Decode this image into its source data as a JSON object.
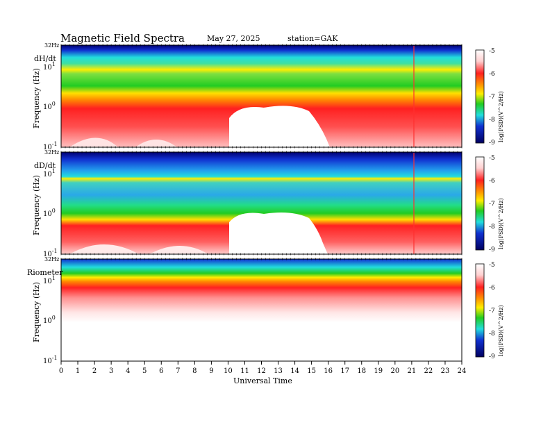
{
  "header": {
    "title": "Magnetic  Field  Spectra",
    "date": "May 27, 2025",
    "station": "station=GAK"
  },
  "chart_data": [
    {
      "type": "heatmap",
      "panel_label": "dH/dt",
      "ylabel": "Frequency  (Hz)",
      "top_freq_label": "32Hz",
      "y_tick_labels": [
        "10",
        "10",
        "10"
      ],
      "y_tick_exponents": [
        "1",
        "0",
        "-1"
      ],
      "xlim": [
        0,
        24
      ],
      "colorbar": {
        "ticks": [
          "-5",
          "-6",
          "-7",
          "-8",
          "-9"
        ],
        "label": "log(PSD)(V^2/Hz)"
      }
    },
    {
      "type": "heatmap",
      "panel_label": "dD/dt",
      "ylabel": "Frequency  (Hz)",
      "top_freq_label": "32Hz",
      "y_tick_labels": [
        "10",
        "10",
        "10"
      ],
      "y_tick_exponents": [
        "1",
        "0",
        "-1"
      ],
      "xlim": [
        0,
        24
      ],
      "colorbar": {
        "ticks": [
          "-5",
          "-6",
          "-7",
          "-8",
          "-9"
        ],
        "label": "log(PSD)(V^2/Hz)"
      }
    },
    {
      "type": "heatmap",
      "panel_label": "Riometer",
      "ylabel": "Frequency  (Hz)",
      "top_freq_label": "32Hz",
      "y_tick_labels": [
        "10",
        "10",
        "10"
      ],
      "y_tick_exponents": [
        "1",
        "0",
        "-1"
      ],
      "xlim": [
        0,
        24
      ],
      "colorbar": {
        "ticks": [
          "-5",
          "-6",
          "-7",
          "-8",
          "-9"
        ],
        "label": "log(PSD)(V^2/Hz)"
      }
    }
  ],
  "x_axis": {
    "label": "Universal  Time",
    "ticks": [
      "0",
      "1",
      "2",
      "3",
      "4",
      "5",
      "6",
      "7",
      "8",
      "9",
      "10",
      "11",
      "12",
      "13",
      "14",
      "15",
      "16",
      "17",
      "18",
      "19",
      "20",
      "21",
      "22",
      "23",
      "24"
    ]
  },
  "colors": {
    "white": "#ffffff",
    "red": "#e81010",
    "yellow": "#ffee00",
    "green": "#22cc22",
    "cyan": "#22dddd",
    "blue": "#1030d0",
    "navy": "#000070"
  }
}
